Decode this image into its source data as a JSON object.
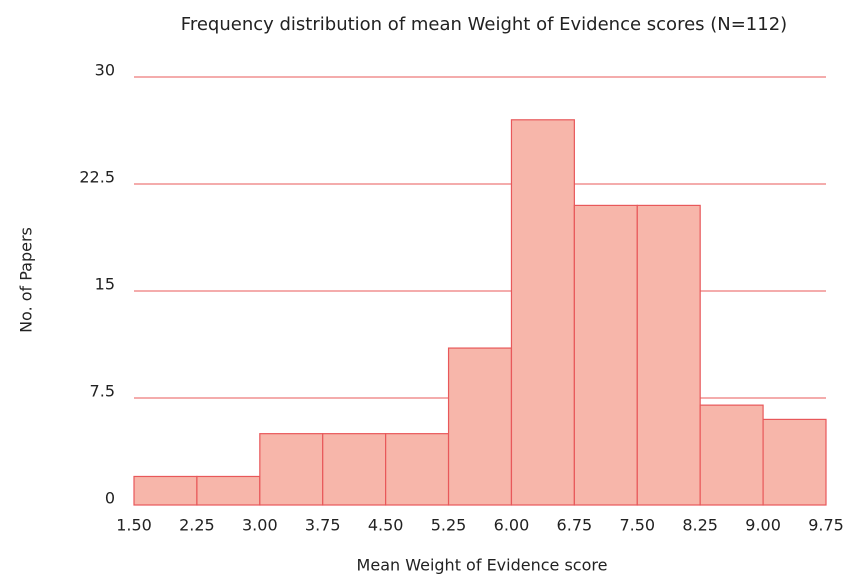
{
  "chart_data": {
    "type": "histogram",
    "title": "Frequency distribution of mean Weight of Evidence scores (N=112)",
    "x_label": "Mean Weight of Evidence score",
    "y_label": "No. of Papers",
    "bins": [
      1.5,
      2.25,
      3.0,
      3.75,
      4.5,
      5.25,
      6.0,
      6.75,
      7.5,
      8.25,
      9.0,
      9.75
    ],
    "values": [
      2,
      2,
      5,
      5,
      5,
      11,
      27,
      21,
      21,
      7,
      6
    ],
    "color": "#f7b6aa",
    "edge_color": "#e8585a",
    "grid_color": "#e8585a",
    "xlim": [
      1.5,
      9.75
    ],
    "xticks": [
      {
        "value": 1.5,
        "label": "1.50"
      },
      {
        "value": 2.25,
        "label": "2.25"
      },
      {
        "value": 3.0,
        "label": "3.00"
      },
      {
        "value": 3.75,
        "label": "3.75"
      },
      {
        "value": 4.5,
        "label": "4.50"
      },
      {
        "value": 5.25,
        "label": "5.25"
      },
      {
        "value": 6.0,
        "label": "6.00"
      },
      {
        "value": 6.75,
        "label": "6.75"
      },
      {
        "value": 7.5,
        "label": "7.50"
      },
      {
        "value": 8.25,
        "label": "8.25"
      },
      {
        "value": 9.0,
        "label": "9.00"
      },
      {
        "value": 9.75,
        "label": "9.75"
      }
    ],
    "ylim": [
      0,
      30
    ],
    "yticks": [
      0,
      7.5,
      15,
      22.5,
      30
    ],
    "grid": true
  }
}
